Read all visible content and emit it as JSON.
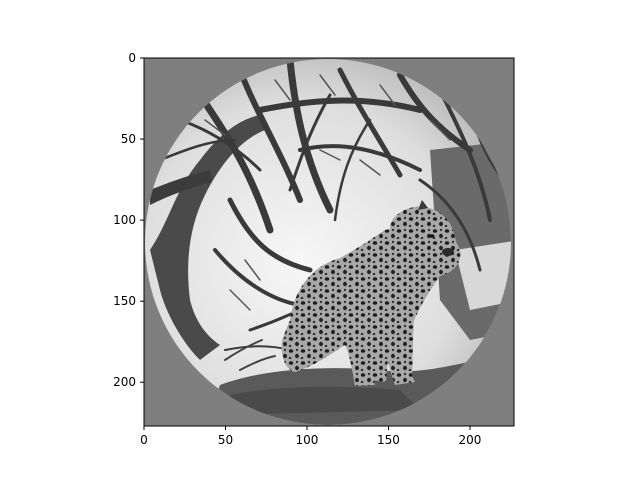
{
  "image": {
    "description_icon": "grayscale-leopard-photo-circular-mask",
    "colors": {
      "mask_gray": "#7f7f7f",
      "sky_light": "#eeeeee",
      "branch_dark": "#3a3a3a",
      "trunk_dark": "#555555",
      "leopard_body": "#9a9a9a",
      "leopard_spot": "#202020",
      "axis_color": "#000000"
    }
  },
  "axes": {
    "x_ticks": [
      "0",
      "50",
      "100",
      "150",
      "200"
    ],
    "y_ticks": [
      "0",
      "50",
      "100",
      "150",
      "200"
    ],
    "xlim": [
      0,
      227
    ],
    "ylim": [
      227,
      0
    ]
  }
}
